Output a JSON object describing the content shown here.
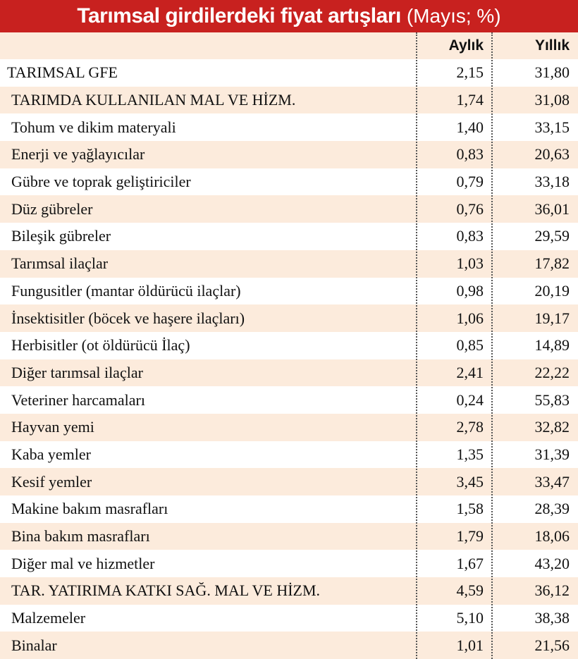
{
  "title": {
    "main": "Tarımsal girdilerdeki fiyat artışları",
    "unit": "(Mayıs; %)"
  },
  "columns": {
    "aylik": "Aylık",
    "yillik": "Yıllık"
  },
  "chart_data": {
    "type": "table",
    "title": "Tarımsal girdilerdeki fiyat artışları (Mayıs; %)",
    "columns": [
      "",
      "Aylık",
      "Yıllık"
    ],
    "rows": [
      {
        "label": "TARIMSAL GFE",
        "aylik": "2,15",
        "yillik": "31,80"
      },
      {
        "label": "TARIMDA KULLANILAN MAL VE HİZM.",
        "aylik": "1,74",
        "yillik": "31,08"
      },
      {
        "label": "Tohum ve dikim materyali",
        "aylik": "1,40",
        "yillik": "33,15"
      },
      {
        "label": "Enerji ve yağlayıcılar",
        "aylik": "0,83",
        "yillik": "20,63"
      },
      {
        "label": "Gübre ve toprak geliştiriciler",
        "aylik": "0,79",
        "yillik": "33,18"
      },
      {
        "label": "Düz gübreler",
        "aylik": "0,76",
        "yillik": "36,01"
      },
      {
        "label": "Bileşik gübreler",
        "aylik": "0,83",
        "yillik": "29,59"
      },
      {
        "label": "Tarımsal ilaçlar",
        "aylik": "1,03",
        "yillik": "17,82"
      },
      {
        "label": "Fungusitler (mantar öldürücü ilaçlar)",
        "aylik": "0,98",
        "yillik": "20,19"
      },
      {
        "label": "İnsektisitler (böcek ve haşere ilaçları)",
        "aylik": "1,06",
        "yillik": "19,17"
      },
      {
        "label": "Herbisitler (ot öldürücü İlaç)",
        "aylik": "0,85",
        "yillik": "14,89"
      },
      {
        "label": "Diğer tarımsal ilaçlar",
        "aylik": "2,41",
        "yillik": "22,22"
      },
      {
        "label": "Veteriner harcamaları",
        "aylik": "0,24",
        "yillik": "55,83"
      },
      {
        "label": "Hayvan yemi",
        "aylik": "2,78",
        "yillik": "32,82"
      },
      {
        "label": "Kaba yemler",
        "aylik": "1,35",
        "yillik": "31,39"
      },
      {
        "label": "Kesif yemler",
        "aylik": "3,45",
        "yillik": "33,47"
      },
      {
        "label": "Makine bakım masrafları",
        "aylik": "1,58",
        "yillik": "28,39"
      },
      {
        "label": "Bina bakım masrafları",
        "aylik": "1,79",
        "yillik": "18,06"
      },
      {
        "label": "Diğer mal ve hizmetler",
        "aylik": "1,67",
        "yillik": "43,20"
      },
      {
        "label": "TAR. YATIRIMA KATKI SAĞ. MAL VE HİZM.",
        "aylik": "4,59",
        "yillik": "36,12"
      },
      {
        "label": "Malzemeler",
        "aylik": "5,10",
        "yillik": "38,38"
      },
      {
        "label": "Binalar",
        "aylik": "1,01",
        "yillik": "21,56"
      }
    ]
  },
  "colors": {
    "title_bg": "#c8211f",
    "band": "#fcebdc",
    "text": "#111111"
  }
}
